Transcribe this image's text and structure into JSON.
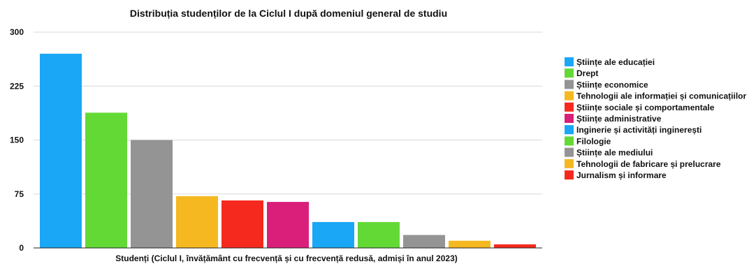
{
  "chart_data": {
    "type": "bar",
    "title": "Distribuția studenților de la Ciclul I după domeniul general de studiu",
    "xlabel": "Studenți (Ciclul I, învățământ cu frecvență și cu frecvență redusă, admiși în anul 2023)",
    "ylabel": "",
    "ylim": [
      0,
      300
    ],
    "yticks": [
      "0",
      "75",
      "150",
      "225",
      "300"
    ],
    "grid": true,
    "legend_position": "right",
    "series": [
      {
        "name": "Științe ale educației",
        "value": 270,
        "color": "#1aa7f5"
      },
      {
        "name": "Drept",
        "value": 188,
        "color": "#63d936"
      },
      {
        "name": "Științe economice",
        "value": 150,
        "color": "#949494"
      },
      {
        "name": "Tehnologii ale informației și comunicațiilor",
        "value": 72,
        "color": "#f5b820"
      },
      {
        "name": "Științe sociale și comportamentale",
        "value": 66,
        "color": "#f5291d"
      },
      {
        "name": "Științe administrative",
        "value": 64,
        "color": "#d91f79"
      },
      {
        "name": "Inginerie și activități inginerești",
        "value": 36,
        "color": "#1aa7f5"
      },
      {
        "name": "Filologie",
        "value": 36,
        "color": "#63d936"
      },
      {
        "name": "Științe ale mediului",
        "value": 18,
        "color": "#949494"
      },
      {
        "name": "Tehnologii de fabricare și prelucrare",
        "value": 10,
        "color": "#f5b820"
      },
      {
        "name": "Jurnalism și informare",
        "value": 5,
        "color": "#f5291d"
      }
    ]
  }
}
